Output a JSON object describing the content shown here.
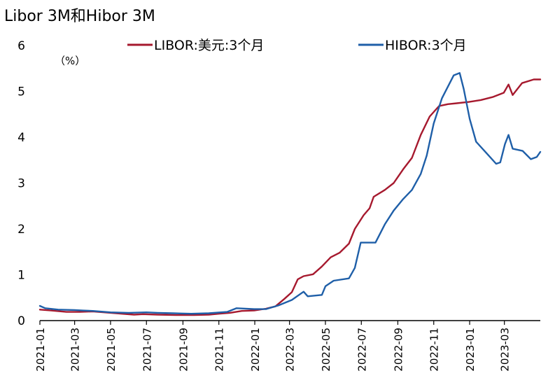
{
  "chart_data": {
    "type": "line",
    "title": "Libor 3M和Hibor 3M",
    "unit_label": "（%）",
    "xlabel": "",
    "ylabel": "",
    "ylim": [
      0,
      6
    ],
    "xlim": [
      "2021-01",
      "2023-05"
    ],
    "y_ticks": [
      "0",
      "1",
      "2",
      "3",
      "4",
      "5",
      "6"
    ],
    "x_ticks": [
      "2021-01",
      "2021-03",
      "2021-05",
      "2021-07",
      "2021-09",
      "2021-11",
      "2022-01",
      "2022-03",
      "2022-05",
      "2022-07",
      "2022-09",
      "2022-11",
      "2023-01",
      "2023-03"
    ],
    "legend_position": "top",
    "grid": false,
    "series": [
      {
        "name": "LIBOR:美元:3个月",
        "color": "#A6192E",
        "points": [
          [
            "2021-01-01",
            0.24
          ],
          [
            "2021-01-20",
            0.22
          ],
          [
            "2021-02-15",
            0.19
          ],
          [
            "2021-03-10",
            0.19
          ],
          [
            "2021-04-01",
            0.2
          ],
          [
            "2021-04-20",
            0.18
          ],
          [
            "2021-05-20",
            0.15
          ],
          [
            "2021-06-10",
            0.13
          ],
          [
            "2021-06-25",
            0.14
          ],
          [
            "2021-07-20",
            0.13
          ],
          [
            "2021-08-20",
            0.12
          ],
          [
            "2021-09-20",
            0.12
          ],
          [
            "2021-10-15",
            0.13
          ],
          [
            "2021-11-01",
            0.15
          ],
          [
            "2021-11-20",
            0.17
          ],
          [
            "2021-12-10",
            0.21
          ],
          [
            "2021-12-31",
            0.22
          ],
          [
            "2022-01-20",
            0.26
          ],
          [
            "2022-02-05",
            0.31
          ],
          [
            "2022-02-20",
            0.47
          ],
          [
            "2022-03-05",
            0.62
          ],
          [
            "2022-03-15",
            0.9
          ],
          [
            "2022-03-25",
            0.97
          ],
          [
            "2022-04-10",
            1.01
          ],
          [
            "2022-04-25",
            1.18
          ],
          [
            "2022-05-10",
            1.38
          ],
          [
            "2022-05-25",
            1.48
          ],
          [
            "2022-06-10",
            1.68
          ],
          [
            "2022-06-20",
            2.0
          ],
          [
            "2022-07-05",
            2.3
          ],
          [
            "2022-07-15",
            2.45
          ],
          [
            "2022-07-22",
            2.7
          ],
          [
            "2022-08-10",
            2.85
          ],
          [
            "2022-08-25",
            3.0
          ],
          [
            "2022-09-10",
            3.3
          ],
          [
            "2022-09-25",
            3.55
          ],
          [
            "2022-10-10",
            4.05
          ],
          [
            "2022-10-25",
            4.45
          ],
          [
            "2022-11-10",
            4.68
          ],
          [
            "2022-11-25",
            4.72
          ],
          [
            "2022-12-10",
            4.74
          ],
          [
            "2022-12-31",
            4.77
          ],
          [
            "2023-01-20",
            4.81
          ],
          [
            "2023-02-10",
            4.88
          ],
          [
            "2023-02-28",
            4.97
          ],
          [
            "2023-03-08",
            5.15
          ],
          [
            "2023-03-15",
            4.92
          ],
          [
            "2023-03-31",
            5.18
          ],
          [
            "2023-04-20",
            5.26
          ],
          [
            "2023-05-01",
            5.26
          ]
        ]
      },
      {
        "name": "HIBOR:3个月",
        "color": "#1F5FA8",
        "points": [
          [
            "2021-01-01",
            0.32
          ],
          [
            "2021-01-10",
            0.27
          ],
          [
            "2021-02-01",
            0.24
          ],
          [
            "2021-03-01",
            0.23
          ],
          [
            "2021-03-15",
            0.22
          ],
          [
            "2021-04-01",
            0.21
          ],
          [
            "2021-05-01",
            0.18
          ],
          [
            "2021-06-01",
            0.17
          ],
          [
            "2021-07-01",
            0.18
          ],
          [
            "2021-07-20",
            0.17
          ],
          [
            "2021-08-15",
            0.16
          ],
          [
            "2021-09-15",
            0.15
          ],
          [
            "2021-10-15",
            0.16
          ],
          [
            "2021-11-15",
            0.19
          ],
          [
            "2021-12-01",
            0.27
          ],
          [
            "2021-12-31",
            0.25
          ],
          [
            "2022-01-20",
            0.25
          ],
          [
            "2022-02-10",
            0.33
          ],
          [
            "2022-03-05",
            0.45
          ],
          [
            "2022-03-25",
            0.63
          ],
          [
            "2022-04-01",
            0.53
          ],
          [
            "2022-04-25",
            0.56
          ],
          [
            "2022-05-01",
            0.75
          ],
          [
            "2022-05-15",
            0.87
          ],
          [
            "2022-06-10",
            0.92
          ],
          [
            "2022-06-20",
            1.15
          ],
          [
            "2022-06-30",
            1.7
          ],
          [
            "2022-07-25",
            1.7
          ],
          [
            "2022-08-10",
            2.1
          ],
          [
            "2022-08-25",
            2.4
          ],
          [
            "2022-09-10",
            2.65
          ],
          [
            "2022-09-25",
            2.85
          ],
          [
            "2022-10-10",
            3.2
          ],
          [
            "2022-10-20",
            3.6
          ],
          [
            "2022-11-01",
            4.3
          ],
          [
            "2022-11-15",
            4.85
          ],
          [
            "2022-11-25",
            5.1
          ],
          [
            "2022-12-05",
            5.35
          ],
          [
            "2022-12-15",
            5.4
          ],
          [
            "2022-12-22",
            5.05
          ],
          [
            "2023-01-01",
            4.4
          ],
          [
            "2023-01-12",
            3.9
          ],
          [
            "2023-02-01",
            3.62
          ],
          [
            "2023-02-15",
            3.42
          ],
          [
            "2023-02-22",
            3.45
          ],
          [
            "2023-03-02",
            3.85
          ],
          [
            "2023-03-08",
            4.05
          ],
          [
            "2023-03-15",
            3.75
          ],
          [
            "2023-04-01",
            3.7
          ],
          [
            "2023-04-15",
            3.52
          ],
          [
            "2023-04-25",
            3.57
          ],
          [
            "2023-05-01",
            3.68
          ]
        ]
      }
    ]
  }
}
